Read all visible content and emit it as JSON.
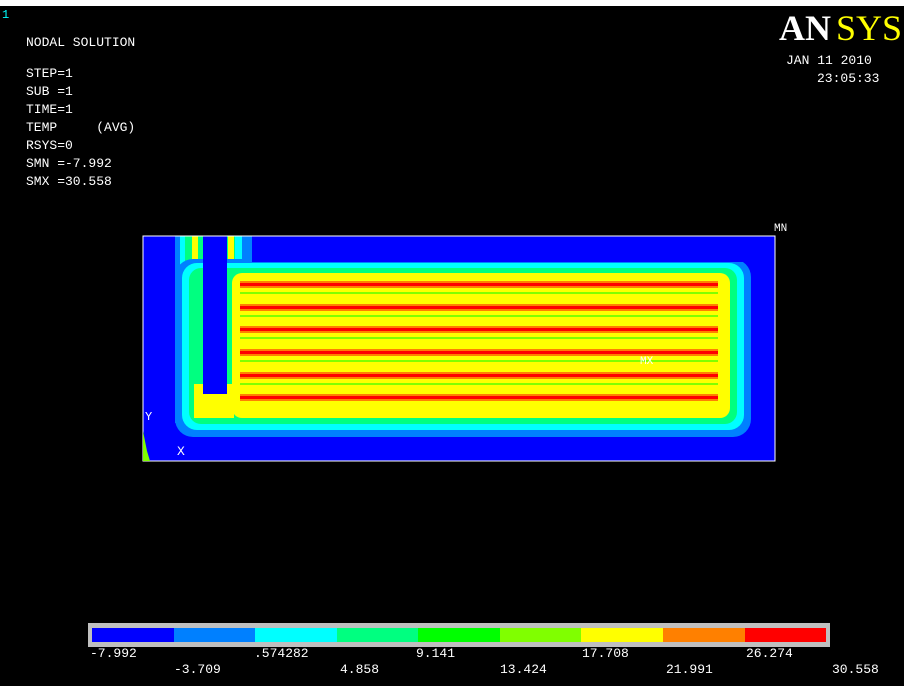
{
  "window_number": "1",
  "header": {
    "title": "NODAL SOLUTION",
    "info": [
      "STEP=1",
      "SUB =1",
      "TIME=1",
      "TEMP     (AVG)",
      "RSYS=0",
      "SMN =-7.992",
      "SMX =30.558"
    ]
  },
  "logo": {
    "text_an": "AN",
    "text_sys": "SYS",
    "color_an": "#ffffff",
    "color_sys": "#ffff00"
  },
  "datetime": {
    "date": "JAN 11 2010",
    "time": "23:05:33"
  },
  "markers": {
    "mn": "MN",
    "mx": "MX",
    "axis_y": "Y",
    "axis_x": "X"
  },
  "legend": {
    "colors": [
      "#0000ff",
      "#0080ff",
      "#00ffff",
      "#00ff80",
      "#00ff00",
      "#80ff00",
      "#ffff00",
      "#ff8000",
      "#ff0000"
    ],
    "upper_labels": [
      "-7.992",
      ".574282",
      "9.141",
      "17.708",
      "26.274"
    ],
    "lower_labels": [
      "-3.709",
      "4.858",
      "13.424",
      "21.991",
      "30.558"
    ]
  }
}
